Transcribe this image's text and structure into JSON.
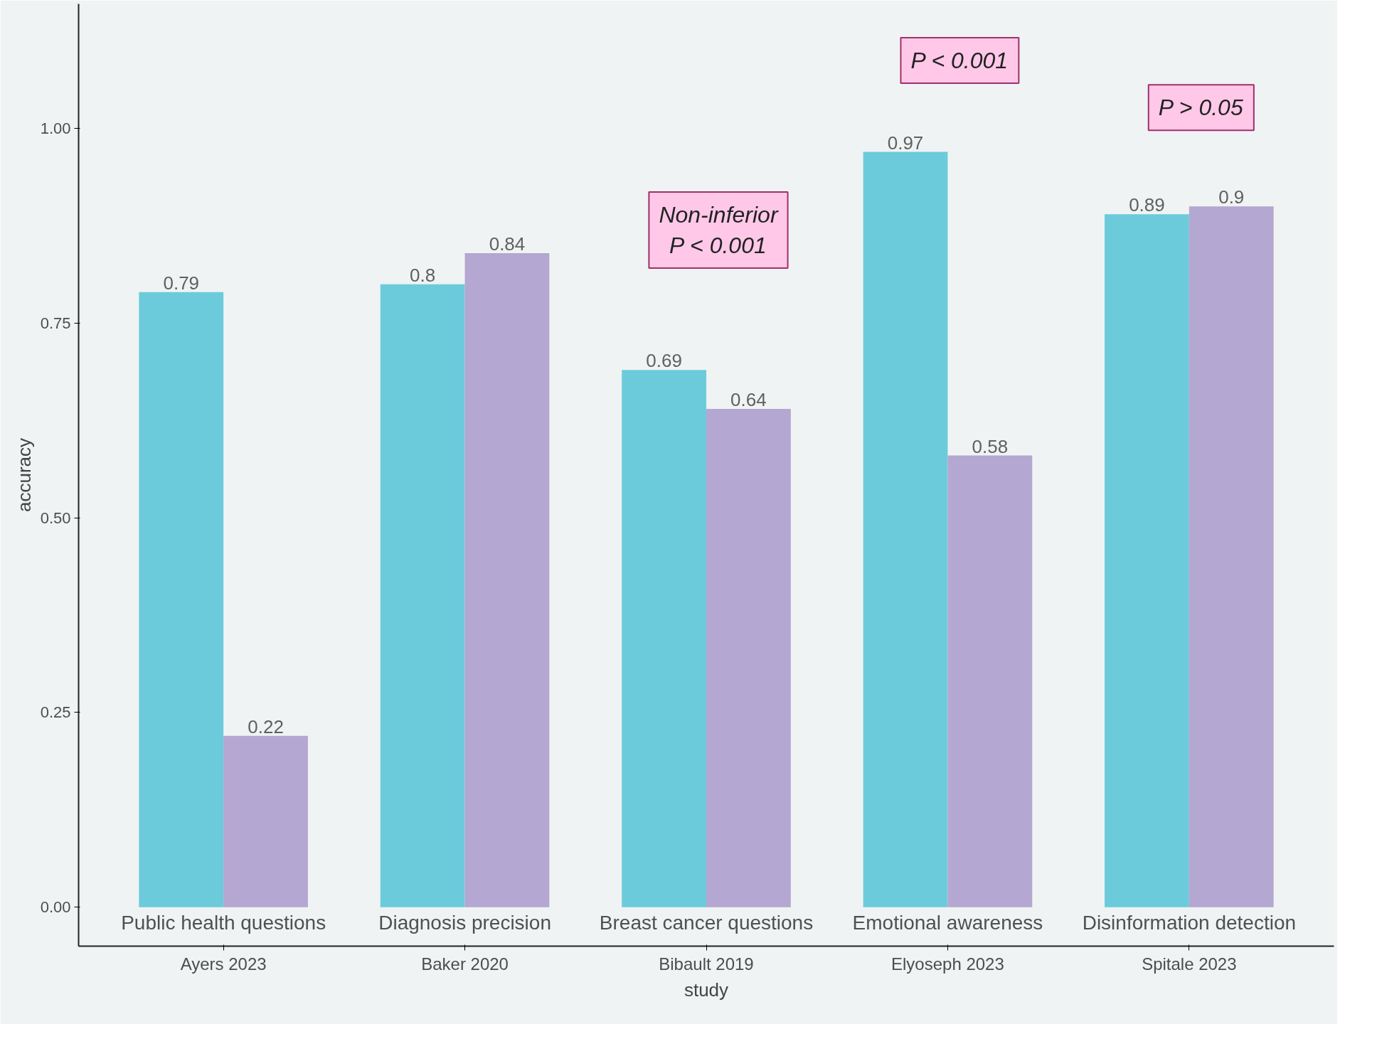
{
  "chart_data": {
    "type": "bar",
    "xlabel": "study",
    "ylabel": "accuracy",
    "categories": [
      "Ayers 2023",
      "Baker 2020",
      "Bibault 2019",
      "Elyoseph 2023",
      "Spitale 2023"
    ],
    "series": [
      {
        "color": "#6ccbdb",
        "values": [
          0.79,
          0.8,
          0.69,
          0.97,
          0.89
        ]
      },
      {
        "color": "#b4a7d1",
        "values": [
          0.22,
          0.84,
          0.64,
          0.58,
          0.9
        ]
      }
    ],
    "data_labels": true,
    "grid": false,
    "ylim": [
      -0.05,
      1.16
    ],
    "yticks": [
      {
        "value": 0,
        "label": "0.00"
      },
      {
        "value": 0.25,
        "label": "0.25"
      },
      {
        "value": 0.5,
        "label": "0.50"
      },
      {
        "value": 0.75,
        "label": "0.75"
      },
      {
        "value": 1,
        "label": "1.00"
      }
    ],
    "annotations": [
      {
        "text": "Public health questions",
        "x": "Ayers 2023",
        "y": 0
      },
      {
        "text": "Diagnosis precision",
        "x": "Baker 2020",
        "y": 0
      },
      {
        "text": "Breast cancer questions",
        "x": "Bibault 2019",
        "y": 0
      },
      {
        "text": "Emotional awareness",
        "x": "Elyoseph 2023",
        "y": 0
      },
      {
        "text": "Disinformation detection",
        "x": "Spitale 2023",
        "y": 0
      },
      "Non-inferior\nP < 0.001",
      "P < 0.001",
      "P > 0.05"
    ]
  }
}
